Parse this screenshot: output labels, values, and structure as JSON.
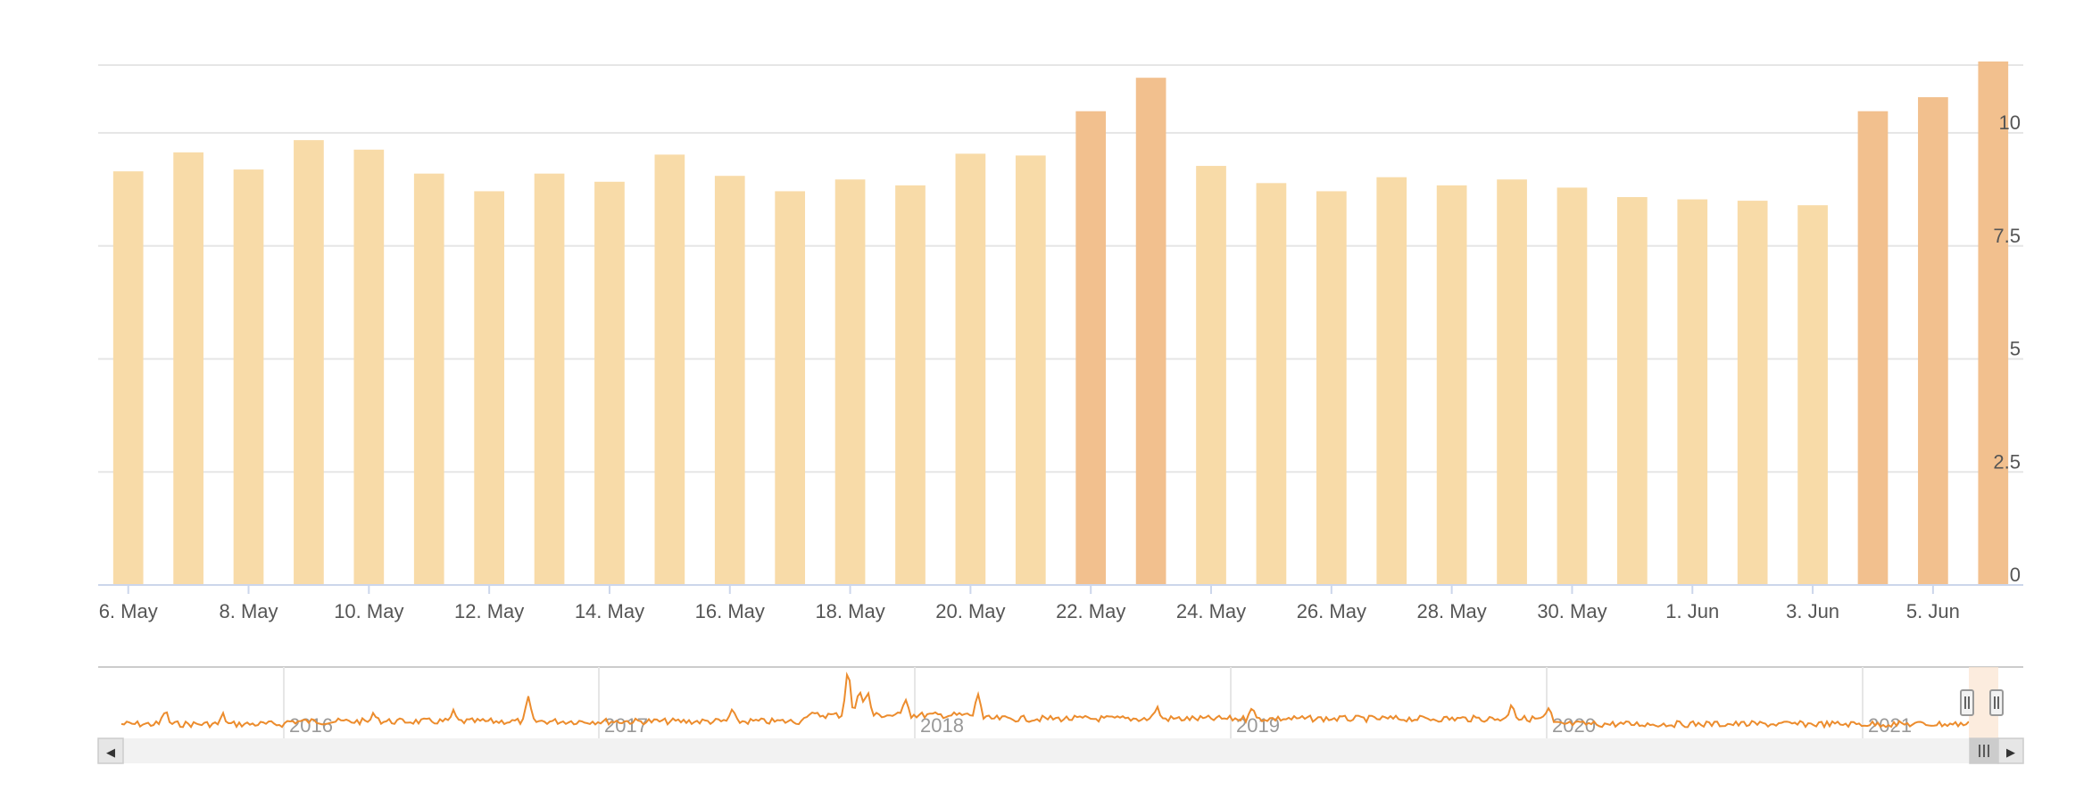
{
  "colors": {
    "bar": "#f8dba8",
    "bar_highlight": "#f2c08e",
    "navigator_line": "#ec8c2d",
    "grid": "#e6e6e6",
    "axis_line": "#ccd6eb",
    "scrollbar_track": "#f2f2f2",
    "scrollbar_button": "#e6e6e6",
    "navigator_mask": "#fbe5d3"
  },
  "chart_data": {
    "type": "bar",
    "title": "",
    "xlabel": "",
    "ylabel": "",
    "ylim": [
      0,
      11.5
    ],
    "y_axis_side": "right",
    "y_ticks": [
      "0",
      "2.5",
      "5",
      "7.5",
      "10"
    ],
    "y_tick_values": [
      0,
      2.5,
      5,
      7.5,
      10
    ],
    "x_tick_labels": [
      "6. May",
      "8. May",
      "10. May",
      "12. May",
      "14. May",
      "16. May",
      "18. May",
      "20. May",
      "22. May",
      "24. May",
      "26. May",
      "28. May",
      "30. May",
      "1. Jun",
      "3. Jun",
      "5. Jun"
    ],
    "categories": [
      "2021-05-06",
      "2021-05-07",
      "2021-05-08",
      "2021-05-09",
      "2021-05-10",
      "2021-05-11",
      "2021-05-12",
      "2021-05-13",
      "2021-05-14",
      "2021-05-15",
      "2021-05-16",
      "2021-05-17",
      "2021-05-18",
      "2021-05-19",
      "2021-05-20",
      "2021-05-21",
      "2021-05-22",
      "2021-05-23",
      "2021-05-24",
      "2021-05-25",
      "2021-05-26",
      "2021-05-27",
      "2021-05-28",
      "2021-05-29",
      "2021-05-30",
      "2021-05-31",
      "2021-06-01",
      "2021-06-02",
      "2021-06-03",
      "2021-06-04",
      "2021-06-05",
      "2021-06-06"
    ],
    "values": [
      9.15,
      9.57,
      9.19,
      9.84,
      9.63,
      9.1,
      8.71,
      9.1,
      8.92,
      9.52,
      9.05,
      8.71,
      8.97,
      8.84,
      9.54,
      9.5,
      10.48,
      11.22,
      9.27,
      8.89,
      8.71,
      9.02,
      8.84,
      8.97,
      8.79,
      8.58,
      8.53,
      8.5,
      8.4,
      10.48,
      10.79,
      11.58
    ],
    "highlighted": [
      false,
      false,
      false,
      false,
      false,
      false,
      false,
      false,
      false,
      false,
      false,
      false,
      false,
      false,
      false,
      false,
      true,
      true,
      false,
      false,
      false,
      false,
      false,
      false,
      false,
      false,
      false,
      false,
      false,
      true,
      true,
      true
    ],
    "grid": true,
    "legend": "none",
    "navigator": {
      "type": "line",
      "year_labels": [
        "2016",
        "2017",
        "2018",
        "2019",
        "2020",
        "2021"
      ],
      "selected_range": [
        "2021-05-06",
        "2021-06-06"
      ]
    }
  },
  "scrollbar": {
    "left_arrow": "◀",
    "right_arrow": "▶"
  }
}
